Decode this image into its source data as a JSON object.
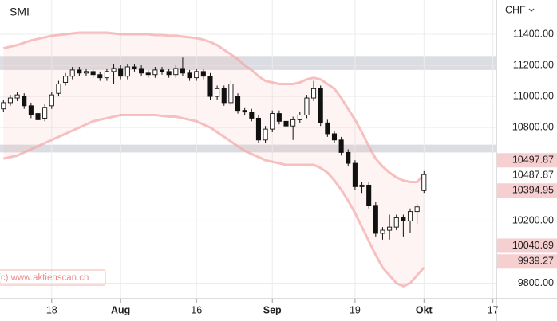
{
  "chart_data": {
    "type": "candlestick",
    "title": "SMI",
    "currency": "CHF",
    "watermark": "(c) www.aktienscan.ch",
    "categories": [
      null,
      null,
      null,
      null,
      null,
      null,
      null,
      "18",
      null,
      null,
      null,
      null,
      null,
      null,
      null,
      null,
      null,
      "Aug",
      null,
      null,
      null,
      null,
      null,
      null,
      null,
      null,
      null,
      null,
      "16",
      null,
      null,
      null,
      null,
      null,
      null,
      null,
      null,
      null,
      null,
      "Sep",
      null,
      null,
      null,
      null,
      null,
      null,
      null,
      null,
      null,
      null,
      null,
      "19",
      null,
      null,
      null,
      null,
      null,
      null,
      null,
      null,
      null,
      "Okt",
      null,
      null,
      null,
      null,
      null,
      null,
      null,
      null,
      null,
      "17"
    ],
    "open": [
      10920,
      10960,
      10990,
      11000,
      10940,
      10890,
      10860,
      10940,
      11020,
      11090,
      11130,
      11170,
      11150,
      11160,
      11140,
      11120,
      11160,
      11180,
      11130,
      11190,
      11180,
      11150,
      11140,
      11170,
      11160,
      11140,
      11180,
      11150,
      11120,
      11160,
      11130,
      11000,
      11050,
      10960,
      11000,
      10910,
      10900,
      10860,
      10720,
      10790,
      10890,
      10840,
      10810,
      10850,
      10880,
      10990,
      11050,
      10830,
      10760,
      10720,
      10640,
      10570,
      10420,
      10430,
      10300,
      10120,
      10140,
      10160,
      10220,
      10200,
      10260,
      10394.95,
      null,
      null,
      null,
      null,
      null,
      null,
      null,
      null,
      null,
      null
    ],
    "high": [
      10980,
      11010,
      11030,
      11020,
      10960,
      10910,
      10950,
      11030,
      11100,
      11150,
      11190,
      11190,
      11180,
      11180,
      11160,
      11180,
      11210,
      11200,
      11210,
      11210,
      11200,
      11170,
      11190,
      11190,
      11180,
      11200,
      11250,
      11170,
      11180,
      11180,
      11150,
      11070,
      11070,
      11100,
      11020,
      10930,
      10920,
      10880,
      10810,
      10910,
      10910,
      10860,
      10870,
      10900,
      11010,
      11100,
      11070,
      10850,
      10780,
      10740,
      10660,
      10590,
      10450,
      10450,
      10320,
      10160,
      10240,
      10240,
      10240,
      10280,
      10310,
      10520,
      null,
      null,
      null,
      null,
      null,
      null,
      null,
      null,
      null,
      null
    ],
    "low": [
      10900,
      10940,
      10970,
      10920,
      10860,
      10830,
      10840,
      10920,
      11000,
      11070,
      11110,
      11130,
      11130,
      11120,
      11100,
      11100,
      11080,
      11110,
      11110,
      11160,
      11130,
      11120,
      11120,
      11140,
      11120,
      11120,
      11130,
      11100,
      11100,
      11110,
      10980,
      10980,
      10940,
      10940,
      10890,
      10880,
      10840,
      10700,
      10700,
      10770,
      10820,
      10790,
      10720,
      10830,
      10860,
      10970,
      10810,
      10740,
      10700,
      10620,
      10550,
      10400,
      10380,
      10280,
      10100,
      10080,
      10080,
      10140,
      10100,
      10120,
      10180,
      10380,
      null,
      null,
      null,
      null,
      null,
      null,
      null,
      null,
      null,
      null
    ],
    "close": [
      10960,
      10990,
      11010,
      10940,
      10880,
      10850,
      10930,
      11010,
      11080,
      11130,
      11170,
      11150,
      11160,
      11140,
      11120,
      11160,
      11180,
      11130,
      11190,
      11180,
      11150,
      11140,
      11170,
      11160,
      11140,
      11180,
      11150,
      11120,
      11160,
      11130,
      11000,
      11050,
      10960,
      11080,
      10910,
      10900,
      10860,
      10720,
      10790,
      10890,
      10840,
      10810,
      10850,
      10880,
      10990,
      11050,
      10830,
      10760,
      10720,
      10640,
      10570,
      10420,
      10430,
      10300,
      10120,
      10140,
      10160,
      10220,
      10200,
      10260,
      10290,
      10497.87,
      null,
      null,
      null,
      null,
      null,
      null,
      null,
      null,
      null,
      null
    ],
    "band_upper": [
      11310,
      11320,
      11330,
      11345,
      11360,
      11370,
      11380,
      11390,
      11395,
      11400,
      11405,
      11410,
      11410,
      11410,
      11410,
      11410,
      11405,
      11400,
      11400,
      11400,
      11400,
      11400,
      11395,
      11395,
      11390,
      11390,
      11385,
      11380,
      11375,
      11365,
      11350,
      11330,
      11300,
      11270,
      11240,
      11200,
      11170,
      11130,
      11100,
      11090,
      11080,
      11080,
      11080,
      11090,
      11110,
      11120,
      11110,
      11080,
      11050,
      10990,
      10920,
      10850,
      10770,
      10680,
      10600,
      10550,
      10510,
      10480,
      10460,
      10450,
      10450,
      10500,
      null,
      null,
      null,
      null,
      null,
      null,
      null,
      null,
      null,
      null
    ],
    "band_lower": [
      10600,
      10610,
      10620,
      10640,
      10660,
      10680,
      10700,
      10720,
      10740,
      10760,
      10780,
      10800,
      10820,
      10840,
      10850,
      10860,
      10870,
      10880,
      10880,
      10880,
      10880,
      10880,
      10880,
      10875,
      10870,
      10870,
      10860,
      10850,
      10840,
      10820,
      10800,
      10770,
      10740,
      10710,
      10680,
      10650,
      10630,
      10610,
      10590,
      10580,
      10570,
      10560,
      10560,
      10560,
      10560,
      10560,
      10540,
      10510,
      10460,
      10400,
      10330,
      10250,
      10160,
      10070,
      9980,
      9900,
      9850,
      9800,
      9780,
      9800,
      9850,
      9900,
      null,
      null,
      null,
      null,
      null,
      null,
      null,
      null,
      null,
      null
    ],
    "band_color": "#f4a6a6",
    "zones": [
      [
        11170,
        11260
      ],
      [
        10640,
        10690
      ]
    ],
    "price_labels": [
      {
        "value": 10497.87,
        "highlight": true
      },
      {
        "value": 10487.87,
        "highlight": false
      },
      {
        "value": 10394.95,
        "highlight": true
      },
      {
        "value": 10040.69,
        "highlight": true
      },
      {
        "value": 9939.27,
        "highlight": true
      }
    ],
    "ylim": [
      9700,
      11620
    ],
    "yticks": [
      {
        "value": 11400,
        "label": "11400.00"
      },
      {
        "value": 11200,
        "label": "11200.00"
      },
      {
        "value": 11000,
        "label": "11000.00"
      },
      {
        "value": 10800,
        "label": "10800.00"
      },
      {
        "value": 10200,
        "label": "10200.00"
      },
      {
        "value": 9800,
        "label": "9800.00"
      }
    ],
    "grid": true
  }
}
